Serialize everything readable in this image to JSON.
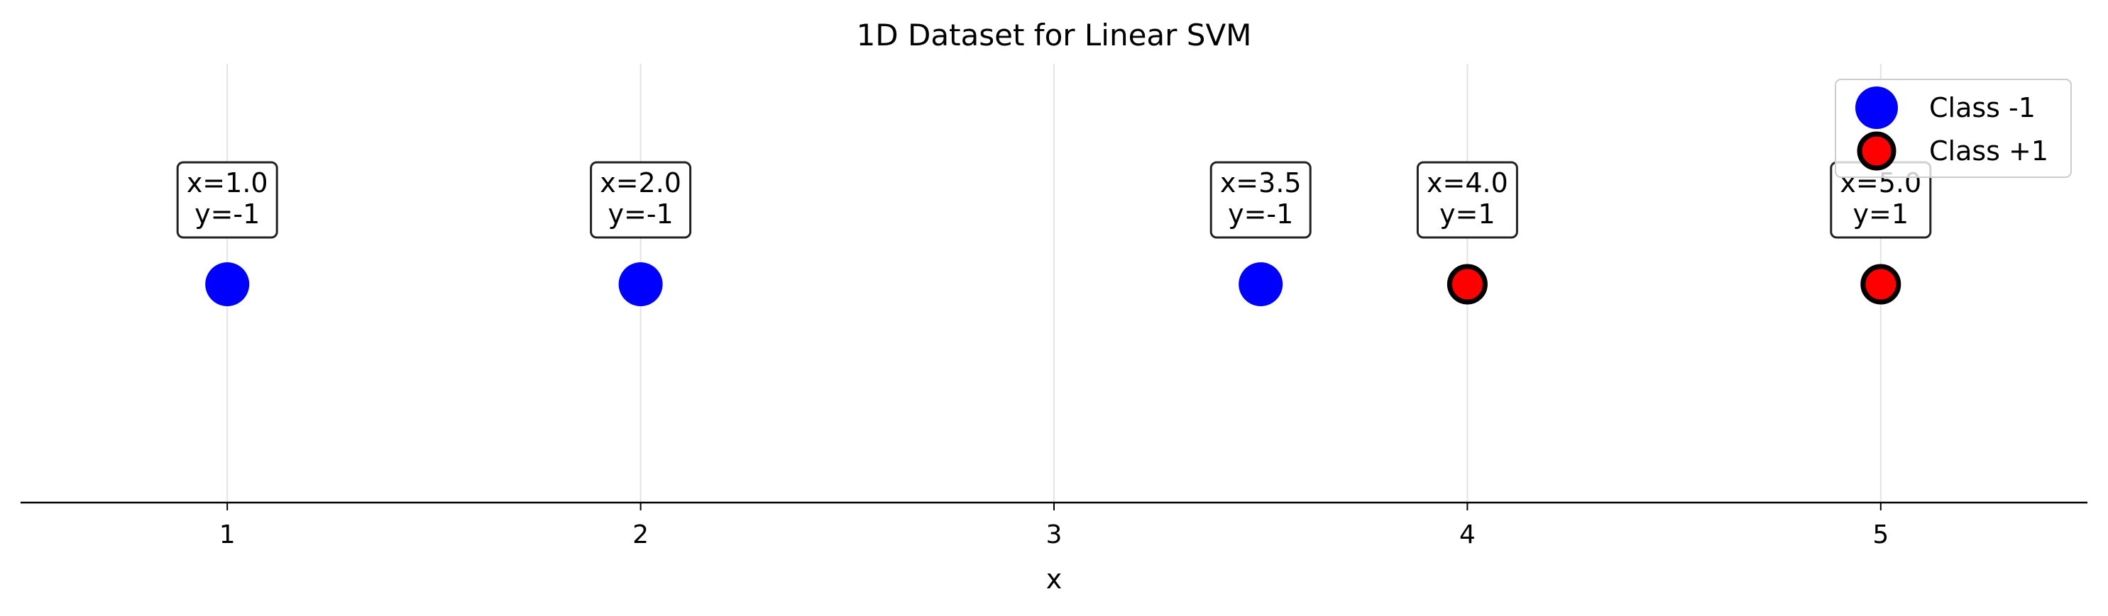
{
  "chart_data": {
    "type": "scatter",
    "title": "1D Dataset for Linear SVM",
    "xlabel": "x",
    "ylabel": "",
    "xlim": [
      0.5,
      5.5
    ],
    "xticks": [
      1,
      2,
      3,
      4,
      5
    ],
    "grid": "vertical",
    "legend": "top-right",
    "series": [
      {
        "name": "Class -1",
        "color": "#0000ff",
        "edge": "none",
        "points": [
          {
            "x": 1.0,
            "label_x": "x=1.0",
            "label_y": "y=-1"
          },
          {
            "x": 2.0,
            "label_x": "x=2.0",
            "label_y": "y=-1"
          },
          {
            "x": 3.5,
            "label_x": "x=3.5",
            "label_y": "y=-1"
          }
        ]
      },
      {
        "name": "Class +1",
        "color": "#ff0000",
        "edge": "#000000",
        "points": [
          {
            "x": 4.0,
            "label_x": "x=4.0",
            "label_y": "y=1"
          },
          {
            "x": 5.0,
            "label_x": "x=5.0",
            "label_y": "y=1"
          }
        ]
      }
    ]
  }
}
